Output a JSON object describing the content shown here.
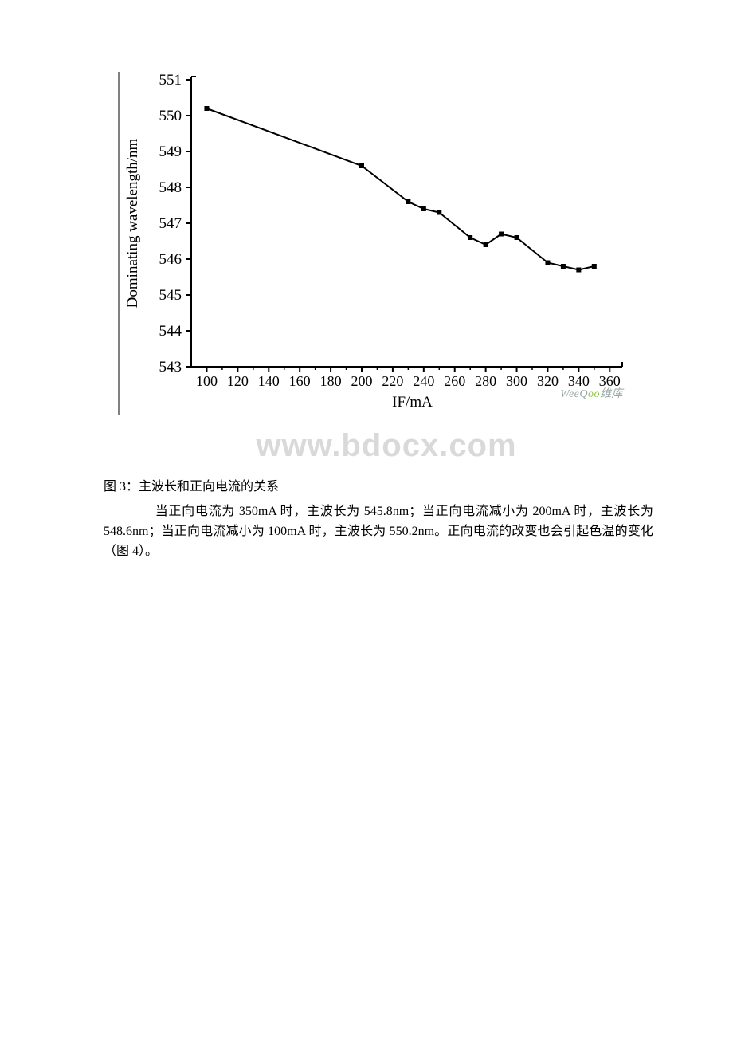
{
  "chart": {
    "type": "line",
    "ylabel": "Dominating wavelength/nm",
    "xlabel": "IF/mA",
    "ylim": [
      543,
      551
    ],
    "xlim": [
      90,
      365
    ],
    "ytick_step": 1,
    "xtick_step": 20,
    "yticks": [
      543,
      544,
      545,
      546,
      547,
      548,
      549,
      550,
      551
    ],
    "xticks": [
      100,
      120,
      140,
      160,
      180,
      200,
      220,
      240,
      260,
      280,
      300,
      320,
      340,
      360
    ],
    "label_fontsize": 19,
    "tick_fontsize": 19,
    "line_color": "#000000",
    "marker_color": "#000000",
    "marker_size": 6,
    "line_width": 2,
    "background_color": "#ffffff",
    "axis_color": "#000000",
    "points": [
      {
        "x": 100,
        "y": 550.2
      },
      {
        "x": 200,
        "y": 548.6
      },
      {
        "x": 230,
        "y": 547.6
      },
      {
        "x": 240,
        "y": 547.4
      },
      {
        "x": 250,
        "y": 547.3
      },
      {
        "x": 270,
        "y": 546.6
      },
      {
        "x": 280,
        "y": 546.4
      },
      {
        "x": 290,
        "y": 546.7
      },
      {
        "x": 300,
        "y": 546.6
      },
      {
        "x": 320,
        "y": 545.9
      },
      {
        "x": 330,
        "y": 545.8
      },
      {
        "x": 340,
        "y": 545.7
      },
      {
        "x": 350,
        "y": 545.8
      }
    ]
  },
  "watermarks": {
    "weeqoo": "WeeQoo维库",
    "bdocx": "www.bdocx.com"
  },
  "caption": "图 3：主波长和正向电流的关系",
  "body": {
    "p1_indented": "当正向电流为 350mA 时，主波长为 545.8nm；当正向电流减小为 200mA 时，",
    "p1_rest": "主波长为 548.6nm；当正向电流减小为 100mA 时，主波长为 550.2nm。正向电流的改变也会引起色温的变化（图 4）。"
  }
}
